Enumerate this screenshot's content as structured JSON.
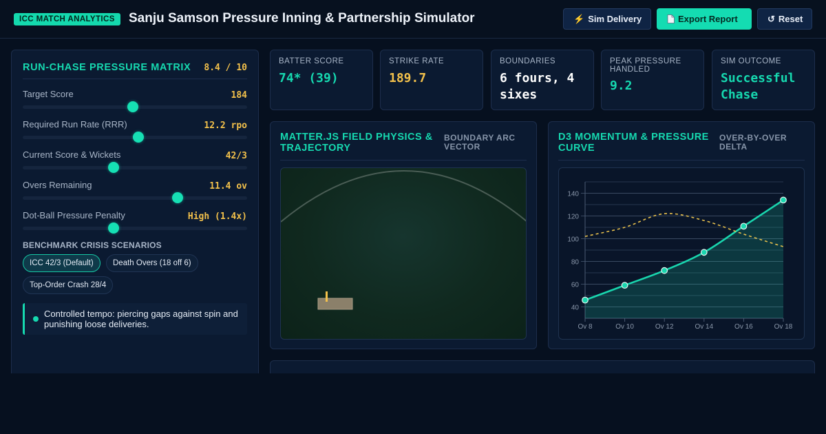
{
  "header": {
    "badge": "ICC MATCH ANALYTICS",
    "title": "Sanju Samson Pressure Inning & Partnership Simulator",
    "buttons": {
      "sim_delivery": "Sim Delivery",
      "export_report": "Export Report",
      "reset": "Reset"
    }
  },
  "matrix": {
    "title": "RUN-CHASE PRESSURE MATRIX",
    "score": "8.4 / 10",
    "sliders": [
      {
        "label": "Target Score",
        "value": "184",
        "level": 0.49
      },
      {
        "label": "Required Run Rate (RRR)",
        "value": "12.2 rpo",
        "level": 0.515
      },
      {
        "label": "Current Score & Wickets",
        "value": "42/3",
        "level": 0.405
      },
      {
        "label": "Overs Remaining",
        "value": "11.4 ov",
        "level": 0.69
      },
      {
        "label": "Dot-Ball Pressure Penalty",
        "value": "High (1.4x)",
        "level": 0.405
      }
    ],
    "benchmark_title": "BENCHMARK CRISIS SCENARIOS",
    "scenarios": [
      {
        "label": "ICC 42/3 (Default)",
        "active": true
      },
      {
        "label": "Death Overs (18 off 6)",
        "active": false
      },
      {
        "label": "Top-Order Crash 28/4",
        "active": false
      }
    ],
    "tempo_note": "Controlled tempo: piercing gaps against spin and punishing loose deliveries."
  },
  "stats": [
    {
      "label": "BATTER SCORE",
      "value": "74* (39)",
      "color": "#16d9b0",
      "mono": true
    },
    {
      "label": "STRIKE RATE",
      "value": "189.7",
      "color": "#f3c14b",
      "mono": true
    },
    {
      "label": "BOUNDARIES",
      "value": "6 fours, 4 sixes",
      "color": "#ffffff",
      "mono": true
    },
    {
      "label": "PEAK PRESSURE HANDLED",
      "value": "9.2",
      "color": "#16d9b0",
      "mono": true
    },
    {
      "label": "SIM OUTCOME",
      "value": "Successful Chase",
      "color": "#16d9b0",
      "mono": true
    }
  ],
  "field_panel": {
    "title": "MATTER.JS FIELD PHYSICS & TRAJECTORY",
    "subtitle": "BOUNDARY ARC VECTOR"
  },
  "momentum_panel": {
    "title": "D3 MOMENTUM & PRESSURE CURVE",
    "subtitle": "OVER-BY-OVER DELTA"
  },
  "chart_data": {
    "type": "line",
    "x": [
      "Ov 8",
      "Ov 10",
      "Ov 12",
      "Ov 14",
      "Ov 16",
      "Ov 18"
    ],
    "x_values": [
      8,
      10,
      12,
      14,
      16,
      18
    ],
    "ylim": [
      30,
      150
    ],
    "yticks": [
      40,
      60,
      80,
      100,
      120,
      140
    ],
    "grid": true,
    "series": [
      {
        "values": [
          46,
          59,
          72,
          88,
          111,
          134
        ],
        "style": "solid",
        "color": "#19d6ae",
        "markers": true,
        "area": true
      },
      {
        "x_values": [
          8,
          10,
          12,
          14,
          16,
          18
        ],
        "values": [
          102,
          110,
          122,
          116,
          104,
          93
        ],
        "style": "dashed",
        "color": "#e9c14d",
        "markers": false
      }
    ]
  }
}
